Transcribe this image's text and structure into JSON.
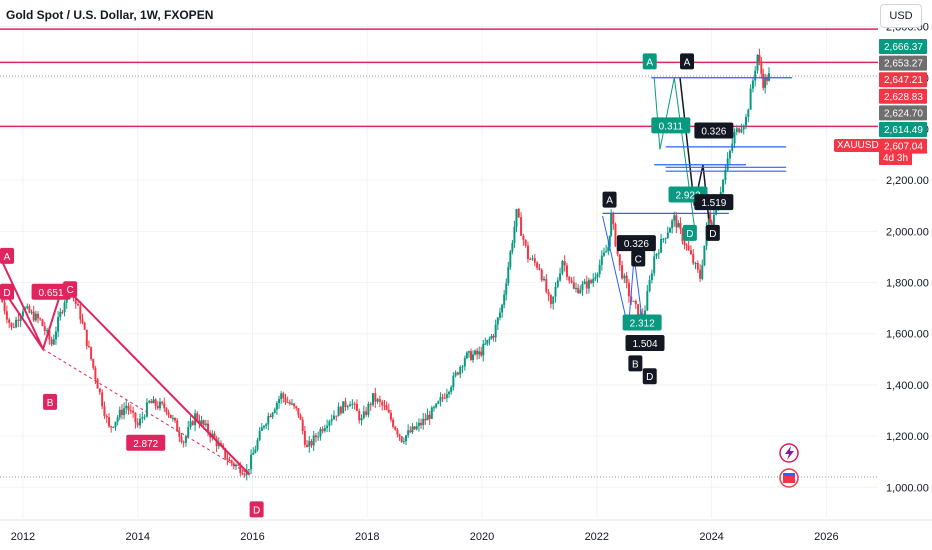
{
  "header": {
    "title": "Gold Spot / U.S. Dollar, 1W, FXOPEN",
    "currency": "USD",
    "ticker": "XAUUSD",
    "countdown": "4d 3h"
  },
  "colors": {
    "up": "#089981",
    "down": "#f23645",
    "pink_line": "#e0245e",
    "blue_line": "#2962ff",
    "dark_badge": "#131722",
    "grey_badge": "#6e6e6e"
  },
  "chart_data": {
    "type": "candlestick",
    "title": "Gold Spot / U.S. Dollar, 1W, FXOPEN",
    "x_ticks": [
      "2012",
      "2014",
      "2016",
      "2018",
      "2020",
      "2022",
      "2024",
      "2026"
    ],
    "y_ticks": [
      "1,000.00",
      "1,200.00",
      "1,400.00",
      "1,600.00",
      "1,800.00",
      "2,000.00",
      "2,200.00",
      "2,400.00",
      "2,600.00",
      "2,800.00"
    ],
    "y_ticks_partial": [
      "2,800.00"
    ],
    "ylim": [
      880,
      2810
    ],
    "xlim": [
      2011.6,
      2026.9
    ],
    "price_path": [
      [
        2011.6,
        1750
      ],
      [
        2011.8,
        1620
      ],
      [
        2012.0,
        1700
      ],
      [
        2012.3,
        1650
      ],
      [
        2012.5,
        1560
      ],
      [
        2012.8,
        1790
      ],
      [
        2013.0,
        1670
      ],
      [
        2013.3,
        1400
      ],
      [
        2013.5,
        1230
      ],
      [
        2013.8,
        1320
      ],
      [
        2014.0,
        1240
      ],
      [
        2014.2,
        1330
      ],
      [
        2014.5,
        1310
      ],
      [
        2014.8,
        1180
      ],
      [
        2015.0,
        1280
      ],
      [
        2015.3,
        1200
      ],
      [
        2015.6,
        1100
      ],
      [
        2015.9,
        1060
      ],
      [
        2016.2,
        1250
      ],
      [
        2016.5,
        1360
      ],
      [
        2016.8,
        1290
      ],
      [
        2016.95,
        1150
      ],
      [
        2017.3,
        1260
      ],
      [
        2017.7,
        1340
      ],
      [
        2017.9,
        1260
      ],
      [
        2018.1,
        1350
      ],
      [
        2018.3,
        1310
      ],
      [
        2018.6,
        1190
      ],
      [
        2018.9,
        1240
      ],
      [
        2019.2,
        1310
      ],
      [
        2019.5,
        1420
      ],
      [
        2019.7,
        1510
      ],
      [
        2019.95,
        1520
      ],
      [
        2020.2,
        1600
      ],
      [
        2020.35,
        1710
      ],
      [
        2020.6,
        2070
      ],
      [
        2020.8,
        1900
      ],
      [
        2021.0,
        1860
      ],
      [
        2021.2,
        1700
      ],
      [
        2021.4,
        1890
      ],
      [
        2021.6,
        1770
      ],
      [
        2021.9,
        1800
      ],
      [
        2022.2,
        1940
      ],
      [
        2022.25,
        2060
      ],
      [
        2022.4,
        1860
      ],
      [
        2022.6,
        1730
      ],
      [
        2022.8,
        1650
      ],
      [
        2023.0,
        1900
      ],
      [
        2023.2,
        1990
      ],
      [
        2023.35,
        2050
      ],
      [
        2023.6,
        1920
      ],
      [
        2023.8,
        1820
      ],
      [
        2023.95,
        2070
      ],
      [
        2024.0,
        2030
      ],
      [
        2024.2,
        2200
      ],
      [
        2024.4,
        2380
      ],
      [
        2024.6,
        2440
      ],
      [
        2024.8,
        2690
      ],
      [
        2024.9,
        2580
      ],
      [
        2025.0,
        2607
      ]
    ],
    "horizontal_levels": [
      {
        "kind": "resistance",
        "price": 2790
      },
      {
        "kind": "resistance",
        "price": 2660
      },
      {
        "kind": "support",
        "price": 2410
      },
      {
        "kind": "dotted",
        "price": 1040
      },
      {
        "kind": "dotted",
        "price": 2607
      }
    ],
    "price_labels": [
      {
        "text": "2,666.37",
        "kind": "up"
      },
      {
        "text": "2,653.27",
        "kind": "grey"
      },
      {
        "text": "2,647.21",
        "kind": "down"
      },
      {
        "text": "2,628.83",
        "kind": "down"
      },
      {
        "text": "2,624.70",
        "kind": "grey"
      },
      {
        "text": "2,614.49",
        "kind": "up"
      },
      {
        "text": "2,607.04",
        "kind": "down"
      }
    ],
    "patterns": [
      {
        "name": "XABCD 2011-2015",
        "badges": [
          {
            "text": "A",
            "color": "pink",
            "x": 2011.6,
            "y": 1900
          },
          {
            "text": "D",
            "color": "pink",
            "x": 2011.6,
            "y": 1760
          },
          {
            "text": "0.651",
            "color": "pink",
            "x": 2012.15,
            "y": 1760
          },
          {
            "text": "C",
            "color": "pink",
            "x": 2012.7,
            "y": 1770
          },
          {
            "text": "B",
            "color": "pink",
            "x": 2012.35,
            "y": 1330
          },
          {
            "text": "2.872",
            "color": "pink",
            "x": 2013.8,
            "y": 1170
          },
          {
            "text": "D",
            "color": "pink",
            "x": 2015.95,
            "y": 910
          }
        ]
      },
      {
        "name": "ABCD 2022",
        "badges": [
          {
            "text": "A",
            "color": "dark",
            "x": 2022.1,
            "y": 2120
          },
          {
            "text": "0.326",
            "color": "dark",
            "x": 2022.35,
            "y": 1950
          },
          {
            "text": "C",
            "color": "dark",
            "x": 2022.6,
            "y": 1890
          },
          {
            "text": "2.312",
            "color": "up",
            "x": 2022.45,
            "y": 1640
          },
          {
            "text": "1.504",
            "color": "dark",
            "x": 2022.5,
            "y": 1560
          },
          {
            "text": "B",
            "color": "dark",
            "x": 2022.55,
            "y": 1480
          },
          {
            "text": "D",
            "color": "dark",
            "x": 2022.8,
            "y": 1430
          }
        ]
      },
      {
        "name": "ABCD 2023",
        "badges": [
          {
            "text": "A",
            "color": "up",
            "x": 2022.8,
            "y": 2660
          },
          {
            "text": "0.311",
            "color": "up",
            "x": 2022.95,
            "y": 2410
          },
          {
            "text": "2.922",
            "color": "up",
            "x": 2023.25,
            "y": 2140
          },
          {
            "text": "D",
            "color": "up",
            "x": 2023.5,
            "y": 1990
          },
          {
            "text": "A",
            "color": "dark",
            "x": 2023.45,
            "y": 2660
          },
          {
            "text": "0.326",
            "color": "dark",
            "x": 2023.7,
            "y": 2390
          },
          {
            "text": "1.519",
            "color": "dark",
            "x": 2023.7,
            "y": 2110
          },
          {
            "text": "D",
            "color": "dark",
            "x": 2023.9,
            "y": 1990
          }
        ]
      }
    ]
  }
}
